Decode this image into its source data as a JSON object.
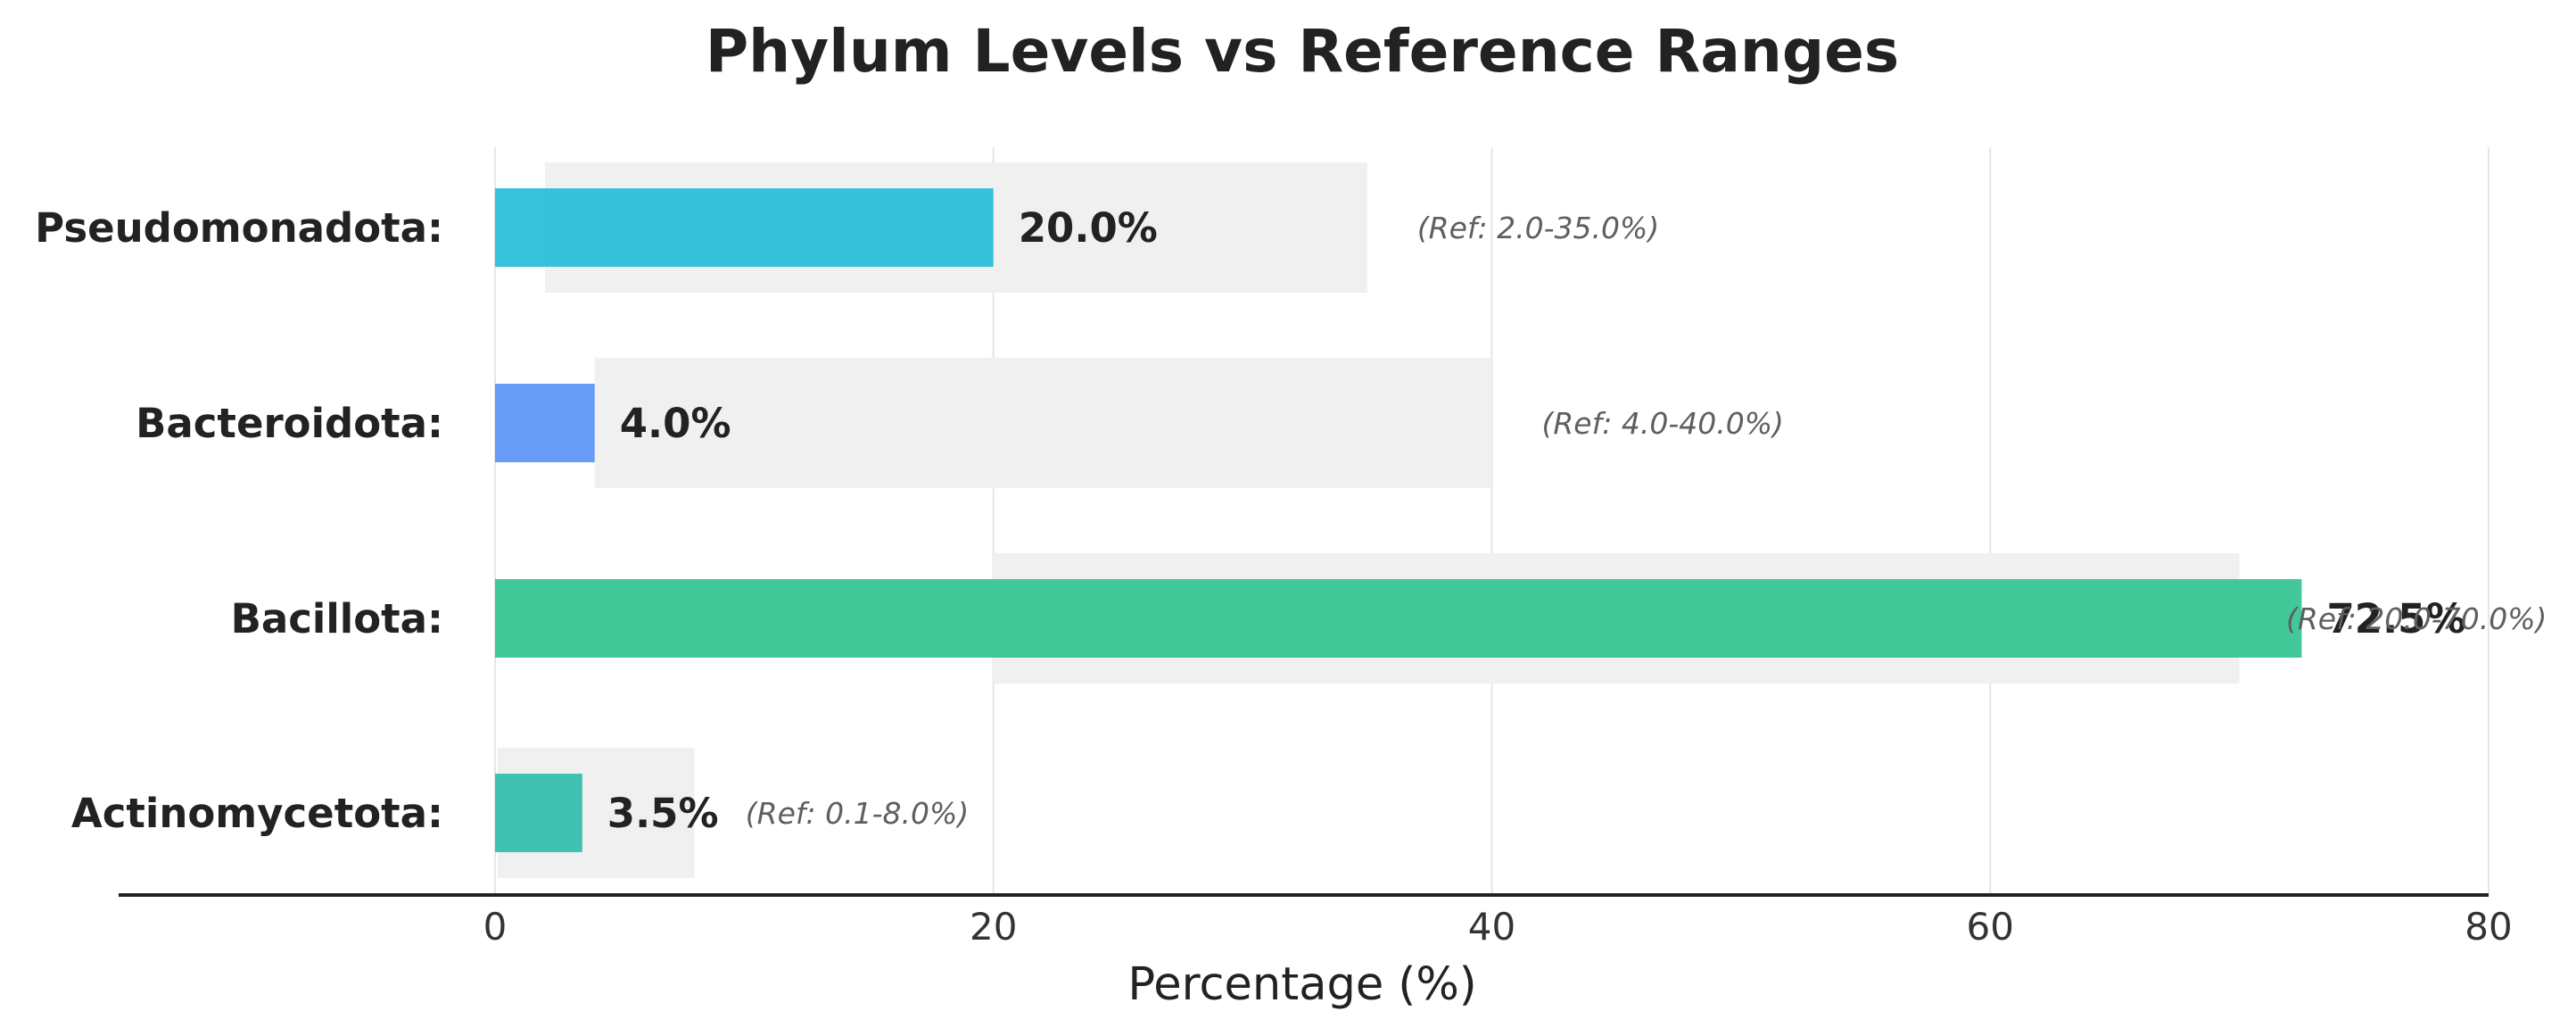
{
  "chart_data": {
    "type": "bar",
    "orientation": "horizontal",
    "title": "Phylum Levels vs Reference Ranges",
    "xlabel": "Percentage (%)",
    "ylabel": "",
    "xlim": [
      0,
      80
    ],
    "xticks": [
      0,
      20,
      40,
      60,
      80
    ],
    "grid": "vertical",
    "legend": "none",
    "categories": [
      {
        "label": "Pseudomonadota:",
        "value": 20.0,
        "value_label": "20.0%",
        "ref_range": [
          2.0,
          35.0
        ],
        "ref_label": "(Ref: 2.0-35.0%)",
        "color": "#22bcd8"
      },
      {
        "label": "Bacteroidota:",
        "value": 4.0,
        "value_label": "4.0%",
        "ref_range": [
          4.0,
          40.0
        ],
        "ref_label": "(Ref: 4.0-40.0%)",
        "color": "#5590f5"
      },
      {
        "label": "Bacillota:",
        "value": 72.5,
        "value_label": "72.5%",
        "ref_range": [
          20.0,
          70.0
        ],
        "ref_label": "(Ref: 20.0-70.0%)",
        "color": "#2ec28e"
      },
      {
        "label": "Actinomycetota:",
        "value": 3.5,
        "value_label": "3.5%",
        "ref_range": [
          0.1,
          8.0
        ],
        "ref_label": "(Ref: 0.1-8.0%)",
        "color": "#2dbbab"
      }
    ],
    "colors": {
      "ref_band": "#f0f0f0",
      "grid": "#e6e6e6",
      "axis": "#222222"
    }
  }
}
